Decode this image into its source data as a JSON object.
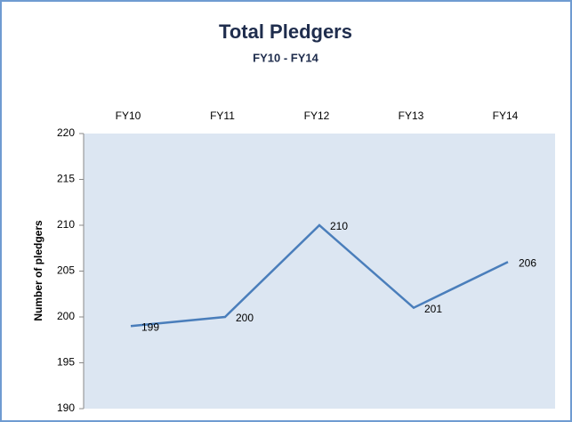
{
  "chart_data": {
    "type": "line",
    "title": "Total Pledgers",
    "subtitle": "FY10 - FY14",
    "y_label": "Number of pledgers",
    "categories": [
      "FY10",
      "FY11",
      "FY12",
      "FY13",
      "FY14"
    ],
    "values": [
      199,
      200,
      210,
      201,
      206
    ],
    "color": "#4a7ebb",
    "ylim": [
      190,
      220
    ],
    "yticks": [
      190,
      195,
      200,
      205,
      210,
      215,
      220
    ],
    "grid": false
  }
}
